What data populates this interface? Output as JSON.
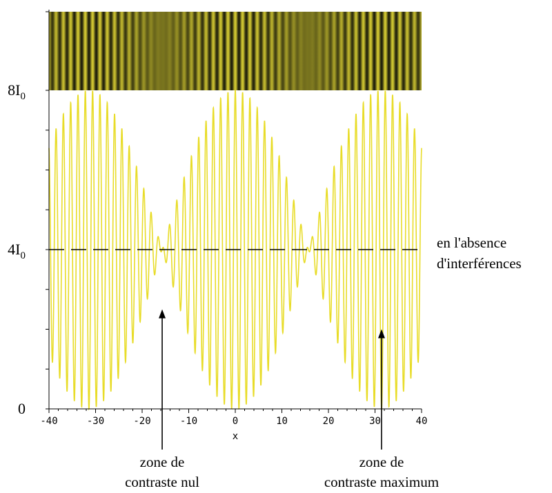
{
  "chart_data": {
    "type": "line",
    "title": "",
    "xlabel": "x",
    "ylabel": "",
    "xlim": [
      -40,
      40
    ],
    "ylim": [
      0,
      8
    ],
    "grid": false,
    "x_ticks": [
      {
        "value": -40,
        "label": "-40"
      },
      {
        "value": -30,
        "label": "-30"
      },
      {
        "value": -20,
        "label": "-20"
      },
      {
        "value": -10,
        "label": "-10"
      },
      {
        "value": 0,
        "label": "0"
      },
      {
        "value": 10,
        "label": "10"
      },
      {
        "value": 20,
        "label": "20"
      },
      {
        "value": 30,
        "label": "30"
      },
      {
        "value": 40,
        "label": "40"
      }
    ],
    "y_labels": [
      {
        "value": 0,
        "main": "0",
        "sub": ""
      },
      {
        "value": 4,
        "main": "4I",
        "sub": "0"
      },
      {
        "value": 8,
        "main": "8I",
        "sub": "0"
      }
    ],
    "series": [
      {
        "name": "",
        "color": "#e8dc28",
        "function": "4 + 4*cos(k*x)*cos(beat*x)",
        "k": 4.0,
        "beat": 0.1
      }
    ],
    "reference_line": {
      "value": 4,
      "style": "dashed",
      "label_line1": "en l'absence",
      "label_line2": "d'interférences"
    },
    "fringe_band": {
      "color_light": "#d2c832",
      "color_dark": "#1e1e0a"
    },
    "annotations": [
      {
        "id": "nul",
        "x": -15.7,
        "value": 2.5,
        "line1": "zone de",
        "line2": "contraste nul"
      },
      {
        "id": "max",
        "x": 31.4,
        "value": 2.0,
        "line1": "zone de",
        "line2": "contraste maximum"
      }
    ]
  }
}
